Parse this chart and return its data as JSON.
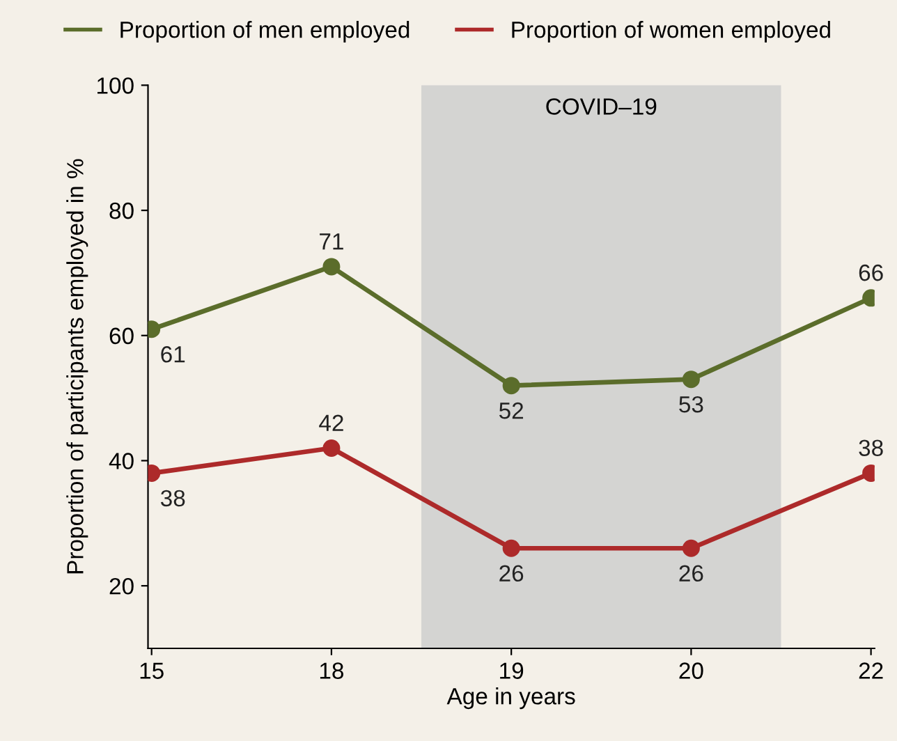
{
  "chart_data": {
    "type": "line",
    "xlabel": "Age in years",
    "ylabel": "Proportion of participants employed in %",
    "categories": [
      "15",
      "18",
      "19",
      "20",
      "22"
    ],
    "series": [
      {
        "name": "Proportion of men employed",
        "color": "#5b6d2b",
        "values": [
          61,
          71,
          52,
          53,
          66
        ]
      },
      {
        "name": "Proportion of women employed",
        "color": "#ad2a2a",
        "values": [
          38,
          42,
          26,
          26,
          38
        ]
      }
    ],
    "ylim": [
      10,
      100
    ],
    "yticks": [
      20,
      40,
      60,
      80,
      100
    ],
    "bands": [
      {
        "axis": "x",
        "from": "19",
        "to": "20",
        "label": "COVID–19",
        "color": "#d4d4d2"
      }
    ],
    "data_labels": true,
    "marker": "circle",
    "line_style": "solid",
    "legend": "top",
    "grid": false
  }
}
